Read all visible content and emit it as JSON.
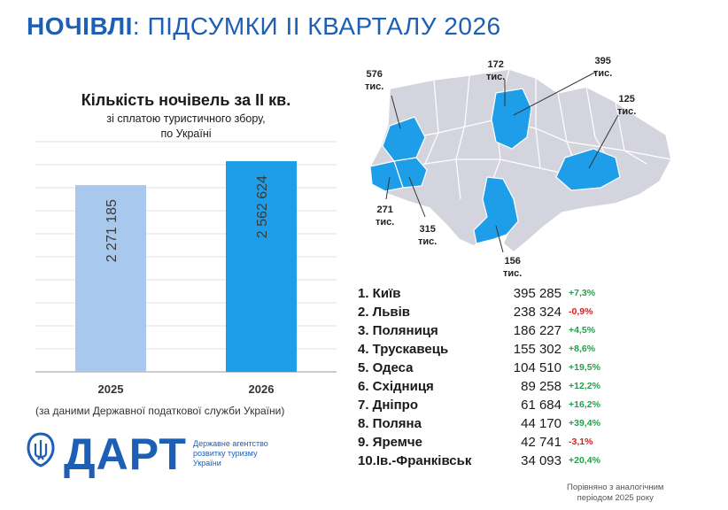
{
  "header": {
    "title_bold": "НОЧІВЛІ",
    "title_rest": ": ПІДСУМКИ ІІ КВАРТАЛУ 2026"
  },
  "chart_data": {
    "type": "bar",
    "title": "Кількість ночівель за ІІ кв.",
    "subtitle_line1": "зі сплатою туристичного збору,",
    "subtitle_line2": "по Україні",
    "categories": [
      "2025",
      "2026"
    ],
    "values": [
      2271185,
      2562624
    ],
    "value_labels": [
      "2 271 185",
      "2 562 624"
    ],
    "colors": [
      "#a8c8ee",
      "#1e9de8"
    ],
    "ylim": [
      0,
      2800000
    ],
    "grid": true
  },
  "footnote": "(за даними Державної податкової служби України)",
  "logo": {
    "name": "ДАРТ",
    "agency_line1": "Державне агентство",
    "agency_line2": "розвитку туризму",
    "agency_line3": "України"
  },
  "map": {
    "labels": [
      {
        "l1": "576",
        "l2": "тис."
      },
      {
        "l1": "172",
        "l2": "тис."
      },
      {
        "l1": "395",
        "l2": "тис."
      },
      {
        "l1": "125",
        "l2": "тис."
      },
      {
        "l1": "271",
        "l2": "тис."
      },
      {
        "l1": "315",
        "l2": "тис."
      },
      {
        "l1": "156",
        "l2": "тис."
      }
    ],
    "base_color": "#d4d4de",
    "highlight_color": "#1e9de8"
  },
  "ranking": [
    {
      "name": "1. Київ",
      "value": "395 285",
      "change": "+7,3%",
      "dir": "pos"
    },
    {
      "name": "2. Львів",
      "value": "238 324",
      "change": "-0,9%",
      "dir": "neg"
    },
    {
      "name": "3. Поляниця",
      "value": "186 227",
      "change": "+4,5%",
      "dir": "pos"
    },
    {
      "name": "4. Трускавець",
      "value": "155 302",
      "change": "+8,6%",
      "dir": "pos"
    },
    {
      "name": "5. Одеса",
      "value": "104 510",
      "change": "+19,5%",
      "dir": "pos"
    },
    {
      "name": "6. Східниця",
      "value": "89 258",
      "change": "+12,2%",
      "dir": "pos"
    },
    {
      "name": "7. Дніпро",
      "value": "61 684",
      "change": "+16,2%",
      "dir": "pos"
    },
    {
      "name": "8. Поляна",
      "value": "44 170",
      "change": "+39,4%",
      "dir": "pos"
    },
    {
      "name": "9. Яремче",
      "value": "42 741",
      "change": "-3,1%",
      "dir": "neg"
    },
    {
      "name": "10.Ів.-Франківськ",
      "value": "34 093",
      "change": "+20,4%",
      "dir": "pos"
    }
  ],
  "comparison_note_line1": "Порівняно з аналогічним",
  "comparison_note_line2": "періодом 2025 року"
}
